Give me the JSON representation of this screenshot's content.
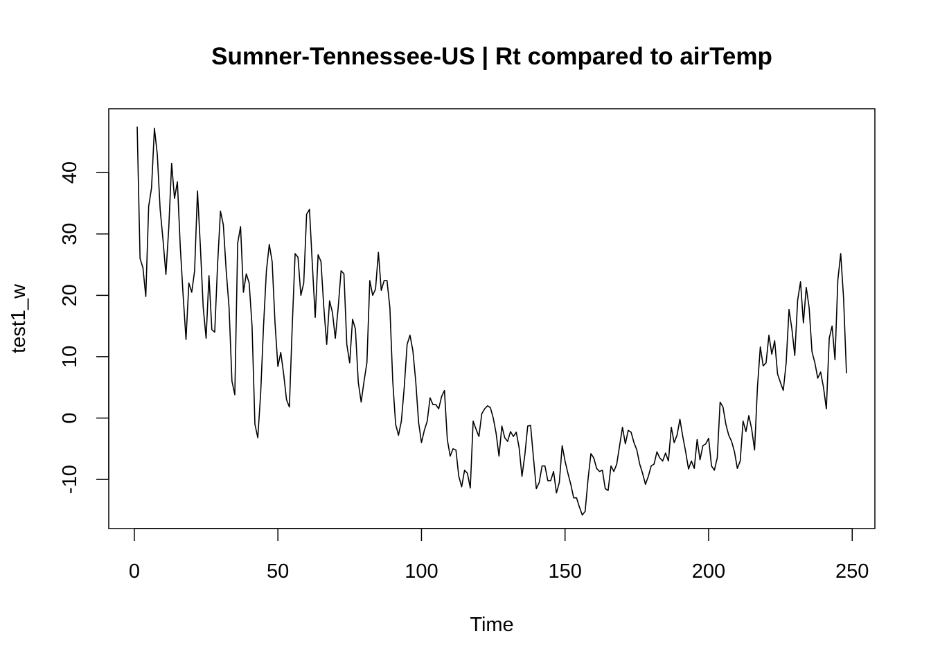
{
  "chart_data": {
    "type": "line",
    "title": "Sumner-Tennessee-US | Rt compared to airTemp",
    "xlabel": "Time",
    "ylabel": "test1_w",
    "xlim": [
      -8.9,
      257.9
    ],
    "ylim": [
      -18.0,
      50.4
    ],
    "x_ticks": [
      0,
      50,
      100,
      150,
      200,
      250
    ],
    "x_tick_labels": [
      "0",
      "50",
      "100",
      "150",
      "200",
      "250"
    ],
    "y_ticks": [
      -10,
      0,
      10,
      20,
      30,
      40
    ],
    "y_tick_labels": [
      "-10",
      "0",
      "10",
      "20",
      "30",
      "40"
    ],
    "grid": false,
    "line_color": "#000000",
    "series": [
      {
        "x_start": 1,
        "values": [
          47.5,
          26.0,
          24.5,
          19.8,
          34.5,
          37.5,
          47.2,
          43.0,
          34.0,
          29.0,
          23.4,
          31.0,
          41.5,
          35.8,
          38.5,
          28.0,
          20.0,
          12.8,
          22.0,
          20.5,
          24.0,
          37.0,
          28.0,
          18.0,
          13.0,
          23.2,
          14.4,
          14.0,
          25.0,
          33.7,
          31.5,
          24.0,
          18.0,
          6.0,
          3.8,
          28.5,
          31.2,
          20.5,
          23.5,
          22.0,
          15.0,
          -1.0,
          -3.2,
          4.0,
          15.0,
          24.0,
          28.3,
          25.5,
          15.5,
          8.4,
          10.7,
          7.2,
          3.0,
          1.8,
          15.0,
          26.8,
          26.2,
          20.0,
          22.0,
          33.2,
          34.0,
          25.0,
          16.4,
          26.6,
          25.5,
          18.0,
          12.0,
          19.1,
          17.2,
          13.0,
          18.0,
          24.0,
          23.5,
          12.0,
          9.0,
          16.1,
          14.5,
          5.8,
          2.6,
          6.0,
          9.0,
          22.4,
          20.0,
          21.0,
          27.0,
          20.8,
          22.4,
          22.4,
          18.0,
          6.0,
          -1.0,
          -2.8,
          -0.5,
          5.0,
          12.0,
          13.5,
          11.0,
          6.0,
          -0.7,
          -4.0,
          -2.0,
          -0.5,
          3.3,
          2.2,
          2.2,
          1.5,
          3.5,
          4.5,
          -3.5,
          -6.2,
          -5.0,
          -5.2,
          -9.5,
          -11.2,
          -8.5,
          -9.0,
          -11.4,
          -0.5,
          -1.8,
          -3.0,
          0.7,
          1.5,
          2.0,
          1.7,
          0.0,
          -2.5,
          -6.2,
          -1.3,
          -3.2,
          -3.8,
          -2.2,
          -3.0,
          -2.3,
          -4.8,
          -9.5,
          -6.0,
          -1.3,
          -1.2,
          -6.5,
          -11.5,
          -10.5,
          -7.8,
          -7.8,
          -10.2,
          -10.2,
          -8.7,
          -12.2,
          -10.5,
          -4.5,
          -7.0,
          -9.0,
          -10.8,
          -13.0,
          -13.0,
          -14.5,
          -15.8,
          -15.2,
          -10.0,
          -5.8,
          -6.5,
          -8.2,
          -8.7,
          -8.5,
          -11.5,
          -11.8,
          -7.8,
          -8.7,
          -7.5,
          -4.5,
          -1.5,
          -4.2,
          -2.0,
          -2.3,
          -4.0,
          -5.2,
          -7.5,
          -9.0,
          -10.8,
          -9.5,
          -7.8,
          -7.5,
          -5.5,
          -6.5,
          -7.0,
          -5.7,
          -7.0,
          -1.5,
          -4.0,
          -2.8,
          -0.2,
          -3.0,
          -5.5,
          -8.3,
          -7.0,
          -8.2,
          -3.5,
          -6.8,
          -4.5,
          -4.2,
          -3.3,
          -7.8,
          -8.5,
          -6.5,
          2.6,
          1.8,
          -1.0,
          -2.8,
          -3.8,
          -5.5,
          -8.2,
          -7.0,
          -0.5,
          -2.2,
          0.4,
          -1.8,
          -5.2,
          5.0,
          11.6,
          8.5,
          9.0,
          13.5,
          10.4,
          12.6,
          7.2,
          5.8,
          4.5,
          9.0,
          17.7,
          14.5,
          10.2,
          19.2,
          22.2,
          15.5,
          21.3,
          18.0,
          10.8,
          9.0,
          6.5,
          7.5,
          5.0,
          1.5,
          13.0,
          15.0,
          9.5,
          22.5,
          26.8,
          19.5,
          7.3
        ]
      }
    ]
  }
}
